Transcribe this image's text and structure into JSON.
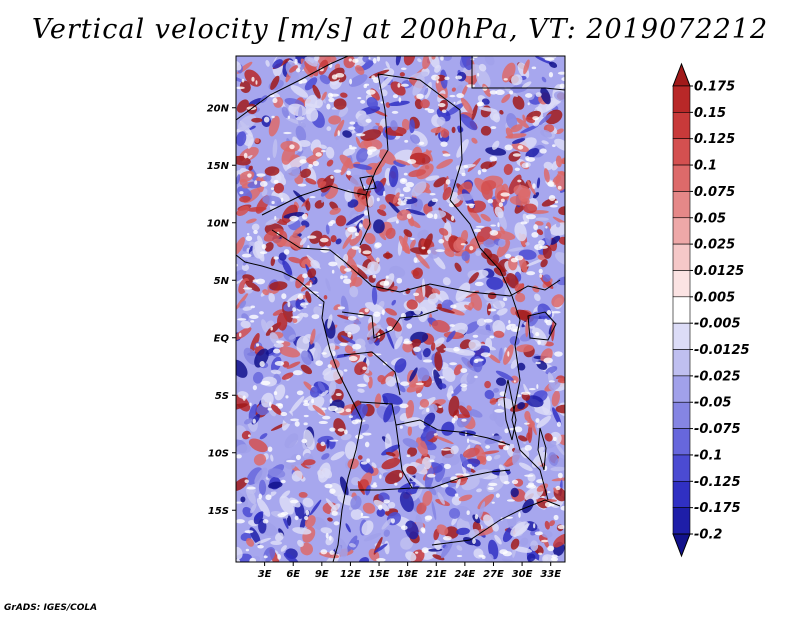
{
  "title": "Vertical velocity [m/s] at 200hPa, VT: 2019072212",
  "credit": "GrADS: IGES/COLA",
  "map": {
    "lat_labels": [
      "20N",
      "15N",
      "10N",
      "5N",
      "EQ",
      "5S",
      "10S",
      "15S"
    ],
    "lat_values": [
      20,
      15,
      10,
      5,
      0,
      -5,
      -10,
      -15
    ],
    "lon_labels": [
      "3E",
      "6E",
      "9E",
      "12E",
      "15E",
      "18E",
      "21E",
      "24E",
      "27E",
      "30E",
      "33E"
    ],
    "lon_values": [
      3,
      6,
      9,
      12,
      15,
      18,
      21,
      24,
      27,
      30,
      33
    ],
    "lon_range": [
      0,
      34.5
    ],
    "lat_range": [
      -19.5,
      24.5
    ]
  },
  "colorbar": {
    "levels": [
      "0.175",
      "0.15",
      "0.125",
      "0.1",
      "0.075",
      "0.05",
      "0.025",
      "0.0125",
      "0.005",
      "-0.005",
      "-0.0125",
      "-0.025",
      "-0.05",
      "-0.075",
      "-0.1",
      "-0.125",
      "-0.175",
      "-0.2"
    ],
    "colors": [
      "#a11a1a",
      "#b82828",
      "#c83a3a",
      "#d45050",
      "#dd6a6a",
      "#e58888",
      "#eea8a8",
      "#f5c8c8",
      "#fbe3e3",
      "#ffffff",
      "#dcdcf7",
      "#bfbff0",
      "#a1a1ea",
      "#8585e3",
      "#6767dc",
      "#4b4bd2",
      "#3030c3",
      "#1e1ea8",
      "#12128c"
    ]
  }
}
